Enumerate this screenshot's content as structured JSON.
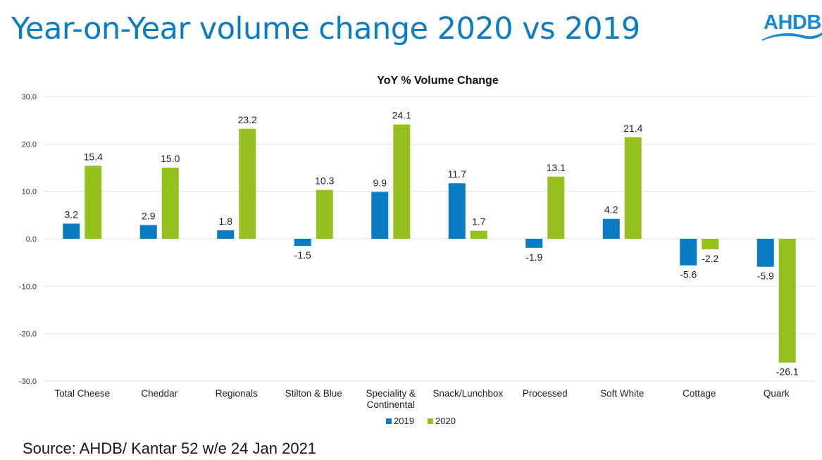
{
  "page": {
    "title": "Year-on-Year volume change 2020 vs 2019",
    "logo_text": "AHDB",
    "source": "Source: AHDB/ Kantar 52 w/e 24 Jan 2021"
  },
  "chart_data": {
    "type": "bar",
    "title": "YoY % Volume Change",
    "xlabel": "",
    "ylabel": "",
    "ylim": [
      -30,
      30
    ],
    "yticks": [
      30,
      20,
      10,
      0,
      -10,
      -20,
      -30
    ],
    "ytick_labels": [
      "30.0",
      "20.0",
      "10.0",
      "0.0",
      "-10.0",
      "-20.0",
      "-30.0"
    ],
    "grid": true,
    "legend_position": "bottom",
    "categories": [
      [
        "Total Cheese"
      ],
      [
        "Cheddar"
      ],
      [
        "Regionals"
      ],
      [
        "Stilton & Blue"
      ],
      [
        "Speciality &",
        "Continental"
      ],
      [
        "Snack/Lunchbox"
      ],
      [
        "Processed"
      ],
      [
        "Soft White"
      ],
      [
        "Cottage"
      ],
      [
        "Quark"
      ]
    ],
    "series": [
      {
        "name": "2019",
        "color": "#0a7cc4",
        "values": [
          3.2,
          2.9,
          1.8,
          -1.5,
          9.9,
          11.7,
          -1.9,
          4.2,
          -5.6,
          -5.9
        ]
      },
      {
        "name": "2020",
        "color": "#95c11f",
        "values": [
          15.4,
          15.0,
          23.2,
          10.3,
          24.1,
          1.7,
          13.1,
          21.4,
          -2.2,
          -26.1
        ]
      }
    ]
  }
}
